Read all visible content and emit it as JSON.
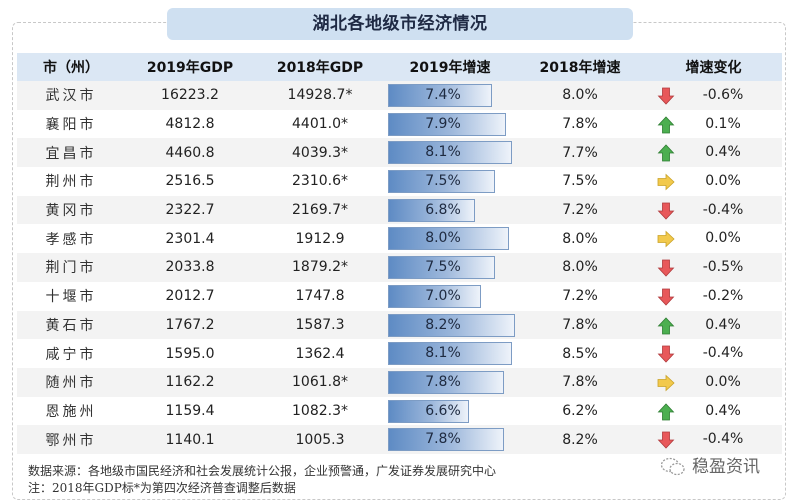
{
  "title": "湖北各地级市经济情况",
  "headers": [
    "市（州）",
    "2019年GDP",
    "2018年GDP",
    "2019年增速",
    "2018年增速",
    "增速变化"
  ],
  "colors": {
    "up": "#4caf50",
    "down": "#e8585a",
    "flat": "#f2c94c",
    "bar": "#5e8bc4",
    "header": "#dbe7f4",
    "title_bg": "#cfe0f1"
  },
  "rows": [
    {
      "city": "武汉市",
      "gdp2019": "16223.2",
      "gdp2018": "14928.7*",
      "growth2019": "7.4%",
      "growth2019_value": 7.4,
      "growth2018": "8.0%",
      "trend": "down",
      "change": "-0.6%"
    },
    {
      "city": "襄阳市",
      "gdp2019": "4812.8",
      "gdp2018": "4401.0*",
      "growth2019": "7.9%",
      "growth2019_value": 7.9,
      "growth2018": "7.8%",
      "trend": "up",
      "change": "0.1%"
    },
    {
      "city": "宜昌市",
      "gdp2019": "4460.8",
      "gdp2018": "4039.3*",
      "growth2019": "8.1%",
      "growth2019_value": 8.1,
      "growth2018": "7.7%",
      "trend": "up",
      "change": "0.4%"
    },
    {
      "city": "荆州市",
      "gdp2019": "2516.5",
      "gdp2018": "2310.6*",
      "growth2019": "7.5%",
      "growth2019_value": 7.5,
      "growth2018": "7.5%",
      "trend": "flat",
      "change": "0.0%"
    },
    {
      "city": "黄冈市",
      "gdp2019": "2322.7",
      "gdp2018": "2169.7*",
      "growth2019": "6.8%",
      "growth2019_value": 6.8,
      "growth2018": "7.2%",
      "trend": "down",
      "change": "-0.4%"
    },
    {
      "city": "孝感市",
      "gdp2019": "2301.4",
      "gdp2018": "1912.9",
      "growth2019": "8.0%",
      "growth2019_value": 8.0,
      "growth2018": "8.0%",
      "trend": "flat",
      "change": "0.0%"
    },
    {
      "city": "荆门市",
      "gdp2019": "2033.8",
      "gdp2018": "1879.2*",
      "growth2019": "7.5%",
      "growth2019_value": 7.5,
      "growth2018": "8.0%",
      "trend": "down",
      "change": "-0.5%"
    },
    {
      "city": "十堰市",
      "gdp2019": "2012.7",
      "gdp2018": "1747.8",
      "growth2019": "7.0%",
      "growth2019_value": 7.0,
      "growth2018": "7.2%",
      "trend": "down",
      "change": "-0.2%"
    },
    {
      "city": "黄石市",
      "gdp2019": "1767.2",
      "gdp2018": "1587.3",
      "growth2019": "8.2%",
      "growth2019_value": 8.2,
      "growth2018": "7.8%",
      "trend": "up",
      "change": "0.4%"
    },
    {
      "city": "咸宁市",
      "gdp2019": "1595.0",
      "gdp2018": "1362.4",
      "growth2019": "8.1%",
      "growth2019_value": 8.1,
      "growth2018": "8.5%",
      "trend": "down",
      "change": "-0.4%"
    },
    {
      "city": "随州市",
      "gdp2019": "1162.2",
      "gdp2018": "1061.8*",
      "growth2019": "7.8%",
      "growth2019_value": 7.8,
      "growth2018": "7.8%",
      "trend": "flat",
      "change": "0.0%"
    },
    {
      "city": "恩施州",
      "gdp2019": "1159.4",
      "gdp2018": "1082.3*",
      "growth2019": "6.6%",
      "growth2019_value": 6.6,
      "growth2018": "6.2%",
      "trend": "up",
      "change": "0.4%"
    },
    {
      "city": "鄂州市",
      "gdp2019": "1140.1",
      "gdp2018": "1005.3",
      "growth2019": "7.8%",
      "growth2019_value": 7.8,
      "growth2018": "8.2%",
      "trend": "down",
      "change": "-0.4%"
    }
  ],
  "footer": {
    "source": "数据来源：各地级市国民经济和社会发展统计公报，企业预警通，广发证券发展研究中心",
    "note": "注：2018年GDP标*为第四次经济普查调整后数据"
  },
  "watermark": "稳盈资讯"
}
